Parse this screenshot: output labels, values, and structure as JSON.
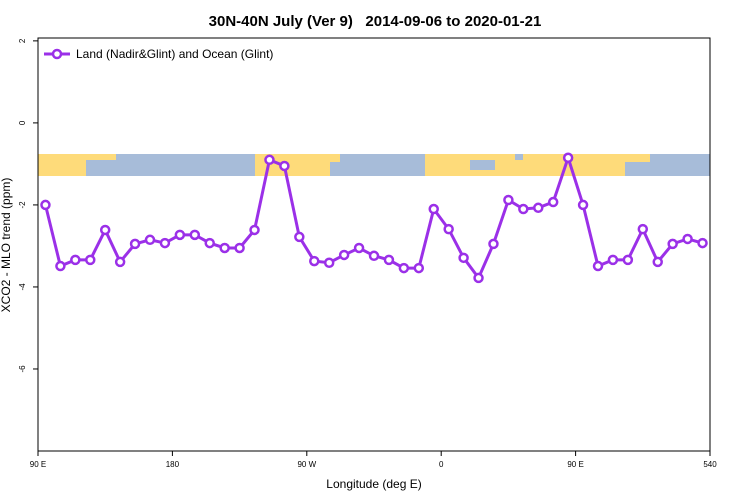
{
  "chart_data": {
    "type": "line",
    "title": "30N-40N July (Ver 9)   2014-09-06 to 2020-01-21",
    "x_label": "Longitude (deg E)",
    "y_label": "XCO2 - MLO trend (ppm)",
    "x": [
      95,
      105,
      115,
      125,
      135,
      145,
      155,
      165,
      175,
      185,
      195,
      205,
      215,
      225,
      235,
      245,
      255,
      265,
      275,
      285,
      295,
      305,
      315,
      325,
      335,
      345,
      355,
      365,
      375,
      385,
      395,
      405,
      415,
      425,
      435,
      445,
      455,
      465,
      475,
      485,
      495,
      505,
      515,
      525,
      535
    ],
    "series": [
      {
        "name": "Land (Nadir&Glint) and Ocean (Glint)",
        "color": "#9b30e8",
        "values": [
          -2.0,
          -3.49,
          -3.34,
          -3.34,
          -2.61,
          -3.39,
          -2.95,
          -2.85,
          -2.93,
          -2.73,
          -2.73,
          -2.93,
          -3.05,
          -3.05,
          -2.61,
          -0.9,
          -1.05,
          -2.78,
          -3.37,
          -3.41,
          -3.22,
          -3.05,
          -3.24,
          -3.34,
          -3.54,
          -3.54,
          -2.1,
          -2.59,
          -3.29,
          -3.78,
          -2.95,
          -1.88,
          -2.1,
          -2.07,
          -1.93,
          -0.85,
          -2.0,
          -3.49,
          -3.34,
          -3.34,
          -2.59,
          -3.39,
          -2.95,
          -2.83,
          -2.93
        ]
      }
    ],
    "xlim": [
      90,
      540
    ],
    "xticks": [
      {
        "value": 90,
        "label": "90 E"
      },
      180,
      {
        "value": 270,
        "label": "90 W"
      },
      {
        "value": 360,
        "label": "0"
      },
      {
        "value": 450,
        "label": "90 E"
      },
      540
    ],
    "ylim": [
      -8,
      2.07
    ],
    "yticks": [
      -6,
      -4,
      -2,
      0,
      2
    ],
    "legend": "top-left"
  }
}
